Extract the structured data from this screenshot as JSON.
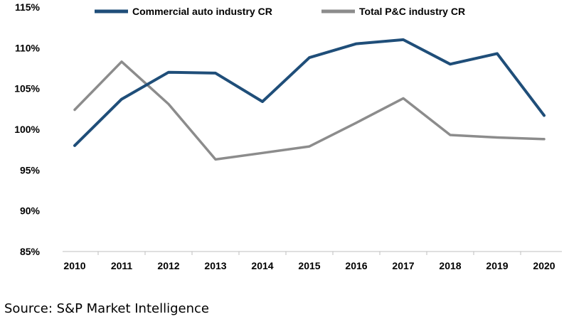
{
  "chart_data": {
    "type": "line",
    "title": "",
    "xlabel": "",
    "ylabel": "",
    "categories": [
      "2010",
      "2011",
      "2012",
      "2013",
      "2014",
      "2015",
      "2016",
      "2017",
      "2018",
      "2019",
      "2020"
    ],
    "ylim": [
      85,
      115
    ],
    "yticks": [
      85,
      90,
      95,
      100,
      105,
      110,
      115
    ],
    "ytick_labels": [
      "85%",
      "90%",
      "95%",
      "100%",
      "105%",
      "110%",
      "115%"
    ],
    "grid": false,
    "legend_position": "top",
    "series": [
      {
        "name": "Commercial auto industry CR",
        "color": "#1f4e79",
        "values": [
          98.0,
          103.7,
          107.0,
          106.9,
          103.4,
          108.8,
          110.5,
          111.0,
          108.0,
          109.3,
          101.7
        ]
      },
      {
        "name": "Total P&C industry CR",
        "color": "#8c8c8c",
        "values": [
          102.4,
          108.3,
          103.1,
          96.3,
          97.1,
          97.9,
          100.8,
          103.8,
          99.3,
          99.0,
          98.8
        ]
      }
    ]
  },
  "source": "Source: S&P Market Intelligence"
}
